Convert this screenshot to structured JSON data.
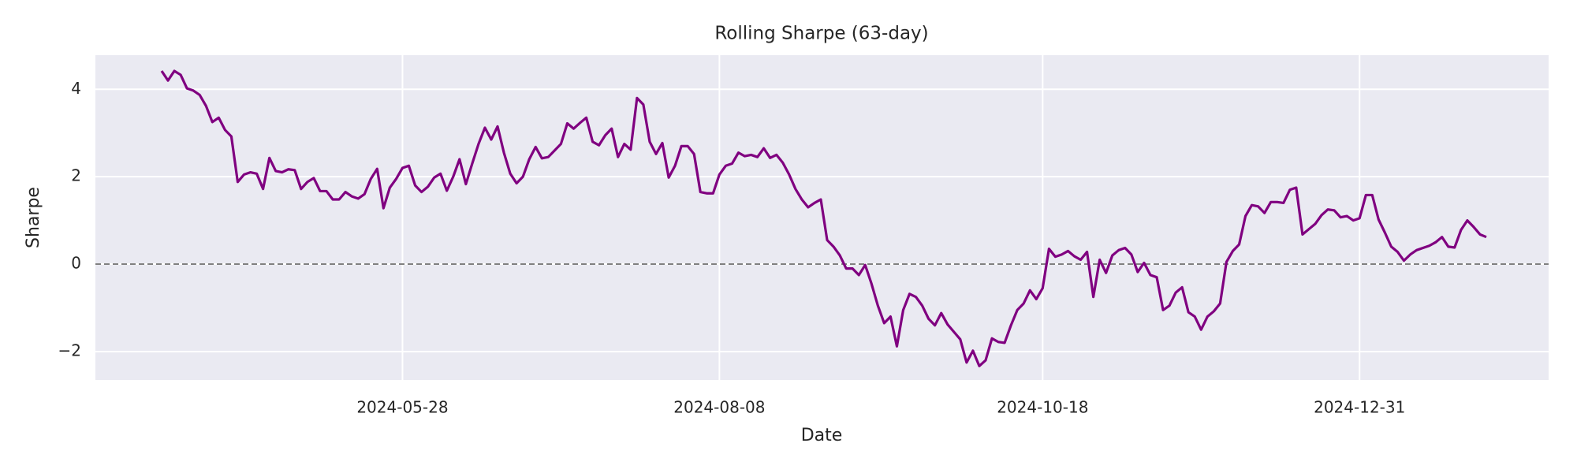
{
  "chart_data": {
    "type": "line",
    "title": "Rolling Sharpe (63-day)",
    "x_label": "Date",
    "y_label": "Sharpe",
    "color": "#800080",
    "grid": true,
    "hline": 0,
    "ylim": [
      -2.65,
      4.78
    ],
    "yticks": [
      {
        "value": -2,
        "label": "−2"
      },
      0,
      2,
      4
    ],
    "categories": [
      null,
      null,
      null,
      null,
      null,
      null,
      null,
      null,
      null,
      null,
      null,
      null,
      null,
      null,
      null,
      null,
      null,
      null,
      null,
      null,
      null,
      null,
      null,
      null,
      null,
      null,
      null,
      null,
      null,
      null,
      null,
      null,
      null,
      null,
      null,
      null,
      null,
      null,
      "2024-05-28",
      null,
      null,
      null,
      null,
      null,
      null,
      null,
      null,
      null,
      null,
      null,
      null,
      null,
      null,
      null,
      null,
      null,
      null,
      null,
      null,
      null,
      null,
      null,
      null,
      null,
      null,
      null,
      null,
      null,
      null,
      null,
      null,
      null,
      null,
      null,
      null,
      null,
      null,
      null,
      null,
      null,
      null,
      null,
      null,
      null,
      null,
      null,
      null,
      null,
      "2024-08-08",
      null,
      null,
      null,
      null,
      null,
      null,
      null,
      null,
      null,
      null,
      null,
      null,
      null,
      null,
      null,
      null,
      null,
      null,
      null,
      null,
      null,
      null,
      null,
      null,
      null,
      null,
      null,
      null,
      null,
      null,
      null,
      null,
      null,
      null,
      null,
      null,
      null,
      null,
      null,
      null,
      null,
      null,
      null,
      null,
      null,
      null,
      null,
      null,
      null,
      null,
      "2024-10-18",
      null,
      null,
      null,
      null,
      null,
      null,
      null,
      null,
      null,
      null,
      null,
      null,
      null,
      null,
      null,
      null,
      null,
      null,
      null,
      null,
      null,
      null,
      null,
      null,
      null,
      null,
      null,
      null,
      null,
      null,
      null,
      null,
      null,
      null,
      null,
      null,
      null,
      null,
      null,
      null,
      null,
      null,
      null,
      null,
      null,
      null,
      null,
      null,
      null,
      "2024-12-31",
      null,
      null,
      null,
      null,
      null,
      null,
      null,
      null,
      null,
      null,
      null,
      null,
      null,
      null,
      null,
      null,
      null,
      null,
      null,
      null
    ],
    "values": [
      4.42,
      4.2,
      4.42,
      4.33,
      4.02,
      3.97,
      3.87,
      3.62,
      3.25,
      3.35,
      3.07,
      2.92,
      1.88,
      2.05,
      2.1,
      2.07,
      1.72,
      2.43,
      2.13,
      2.1,
      2.17,
      2.15,
      1.72,
      1.88,
      1.97,
      1.67,
      1.67,
      1.48,
      1.48,
      1.65,
      1.55,
      1.5,
      1.6,
      1.95,
      2.18,
      1.28,
      1.75,
      1.95,
      2.2,
      2.25,
      1.8,
      1.65,
      1.77,
      1.98,
      2.07,
      1.68,
      2.0,
      2.4,
      1.83,
      2.3,
      2.75,
      3.12,
      2.85,
      3.15,
      2.55,
      2.07,
      1.85,
      2.0,
      2.4,
      2.68,
      2.42,
      2.45,
      2.6,
      2.75,
      3.22,
      3.1,
      3.23,
      3.35,
      2.8,
      2.72,
      2.95,
      3.1,
      2.45,
      2.75,
      2.62,
      3.8,
      3.65,
      2.8,
      2.52,
      2.77,
      1.98,
      2.25,
      2.7,
      2.7,
      2.52,
      1.65,
      1.62,
      1.62,
      2.05,
      2.25,
      2.3,
      2.55,
      2.47,
      2.5,
      2.45,
      2.65,
      2.43,
      2.5,
      2.32,
      2.05,
      1.72,
      1.48,
      1.3,
      1.4,
      1.48,
      0.55,
      0.4,
      0.2,
      -0.1,
      -0.1,
      -0.25,
      -0.02,
      -0.45,
      -0.95,
      -1.35,
      -1.2,
      -1.88,
      -1.05,
      -0.68,
      -0.75,
      -0.95,
      -1.25,
      -1.4,
      -1.12,
      -1.38,
      -1.55,
      -1.72,
      -2.25,
      -1.98,
      -2.33,
      -2.2,
      -1.7,
      -1.78,
      -1.8,
      -1.4,
      -1.05,
      -0.9,
      -0.6,
      -0.8,
      -0.55,
      0.35,
      0.17,
      0.22,
      0.3,
      0.18,
      0.1,
      0.28,
      -0.75,
      0.1,
      -0.2,
      0.2,
      0.32,
      0.37,
      0.22,
      -0.18,
      0.03,
      -0.25,
      -0.3,
      -1.05,
      -0.95,
      -0.65,
      -0.53,
      -1.1,
      -1.2,
      -1.5,
      -1.2,
      -1.08,
      -0.9,
      0.05,
      0.3,
      0.45,
      1.1,
      1.35,
      1.32,
      1.17,
      1.42,
      1.42,
      1.4,
      1.7,
      1.75,
      0.68,
      0.8,
      0.92,
      1.12,
      1.25,
      1.23,
      1.07,
      1.1,
      1.0,
      1.05,
      1.58,
      1.58,
      1.02,
      0.72,
      0.4,
      0.28,
      0.08,
      0.22,
      0.32,
      0.37,
      0.42,
      0.5,
      0.62,
      0.4,
      0.38,
      0.78,
      1.0,
      0.85,
      0.68,
      0.62
    ]
  }
}
